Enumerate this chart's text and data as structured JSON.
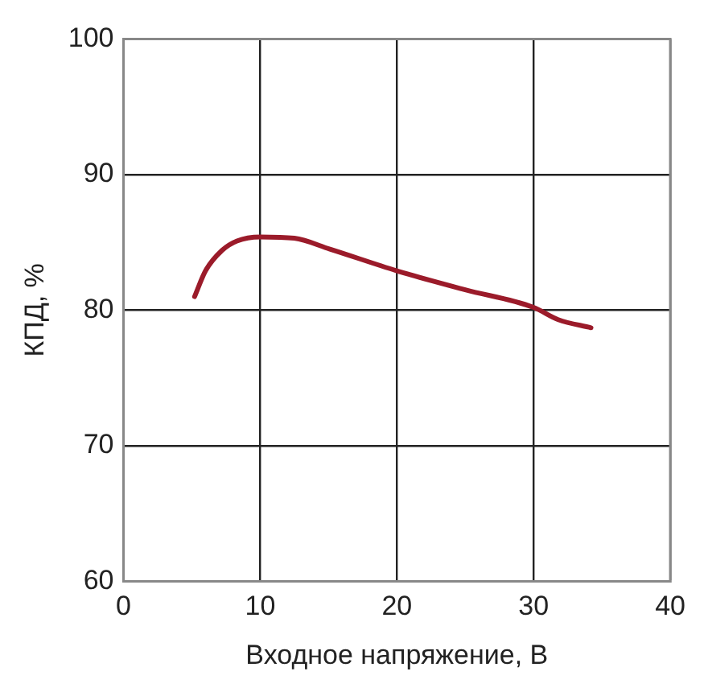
{
  "chart_data": {
    "type": "line",
    "xlabel": "Входное напряжение, В",
    "ylabel": "КПД, %",
    "x": [
      5.2,
      6,
      7.2,
      8.3,
      10,
      12.5,
      15.1,
      20,
      25,
      30,
      31.8,
      34.2
    ],
    "series": [
      {
        "color": "#9b1b2a",
        "values": [
          81,
          82.9,
          84.4,
          85.1,
          85.4,
          85.3,
          84.5,
          82.9,
          81.5,
          80.2,
          79.3,
          78.7
        ]
      }
    ],
    "xlim": [
      0,
      40
    ],
    "xticks": [
      0,
      10,
      20,
      30,
      40
    ],
    "ylim": [
      60,
      100
    ],
    "yticks": [
      60,
      70,
      80,
      90,
      100
    ],
    "grid": true,
    "marker": "none",
    "line_style": "solid"
  }
}
